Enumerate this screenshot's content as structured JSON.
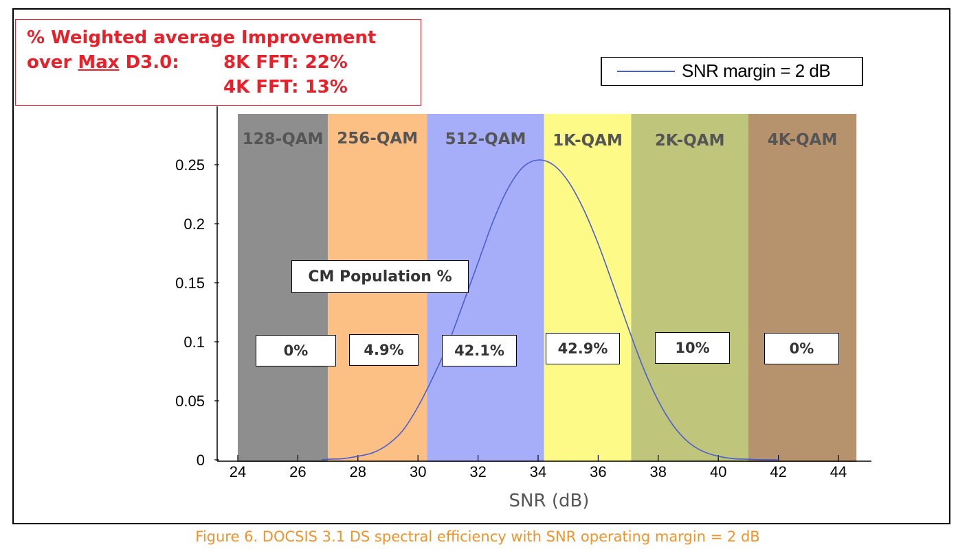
{
  "improvement_box": {
    "line1": "% Weighted average Improvement",
    "line2_prefix": "over ",
    "line2_underlined": "Max",
    "line2_suffix": " D3.0:",
    "fft8k": "8K FFT:  22%",
    "fft4k": "4K FFT:  13%"
  },
  "population_title": "CM Population %",
  "caption": "Figure 6. DOCSIS 3.1 DS spectral efficiency with SNR operating margin = 2 dB",
  "colors": {
    "curve": "#4b5ed0",
    "band_128": "#8e8e8e",
    "band_256": "#fcc085",
    "band_512": "#a6aef9",
    "band_1k": "#fdfa88",
    "band_2k": "#bfc57b",
    "band_4k": "#b7936d",
    "caption": "#f0932b",
    "highlight": "#e8202a"
  },
  "chart_data": {
    "type": "line",
    "title": "",
    "xlabel": "SNR (dB)",
    "ylabel": "",
    "xlim": [
      23.5,
      45
    ],
    "ylim": [
      0,
      0.3
    ],
    "x_ticks": [
      "24",
      "26",
      "28",
      "30",
      "32",
      "34",
      "36",
      "38",
      "40",
      "42",
      "44"
    ],
    "y_ticks": [
      "0",
      "0.05",
      "0.1",
      "0.15",
      "0.2",
      "0.25"
    ],
    "legend": {
      "position": "top-right",
      "entries": [
        "SNR margin = 2 dB"
      ]
    },
    "bands": [
      {
        "label": "128-QAM",
        "x_start": 24,
        "x_end": 27,
        "population": "0%"
      },
      {
        "label": "256-QAM",
        "x_start": 27,
        "x_end": 30.3,
        "population": "4.9%"
      },
      {
        "label": "512-QAM",
        "x_start": 30.3,
        "x_end": 34.2,
        "population": "42.1%"
      },
      {
        "label": "1K-QAM",
        "x_start": 34.2,
        "x_end": 37.1,
        "population": "42.9%"
      },
      {
        "label": "2K-QAM",
        "x_start": 37.1,
        "x_end": 41,
        "population": "10%"
      },
      {
        "label": "4K-QAM",
        "x_start": 41,
        "x_end": 44.6,
        "population": "0%"
      }
    ],
    "series": [
      {
        "name": "SNR margin = 2 dB",
        "x": [
          26.8,
          27,
          27.5,
          28,
          28.5,
          29,
          29.5,
          30,
          30.5,
          31,
          31.5,
          32,
          32.5,
          33,
          33.5,
          34,
          34.5,
          35,
          35.5,
          36,
          36.5,
          37,
          37.5,
          38,
          38.5,
          39,
          39.5,
          40,
          40.5,
          41,
          41.5,
          42
        ],
        "y": [
          0,
          0.0005,
          0.001,
          0.003,
          0.006,
          0.013,
          0.025,
          0.045,
          0.07,
          0.098,
          0.132,
          0.167,
          0.202,
          0.23,
          0.248,
          0.254,
          0.25,
          0.236,
          0.213,
          0.183,
          0.148,
          0.112,
          0.078,
          0.05,
          0.029,
          0.015,
          0.007,
          0.003,
          0.001,
          0.0005,
          0.0001,
          0
        ]
      }
    ]
  }
}
